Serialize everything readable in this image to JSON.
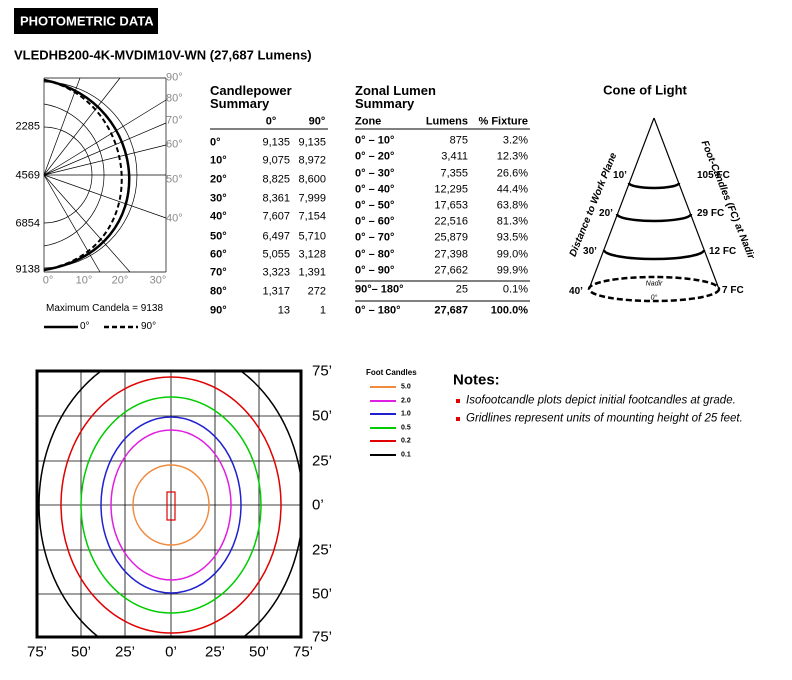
{
  "header": {
    "badge": "PHOTOMETRIC DATA",
    "model": "VLEDHB200-4K-MVDIM10V-WN (27,687 Lumens)"
  },
  "polar": {
    "angle_labels": [
      "90°",
      "80°",
      "70°",
      "60°",
      "50°",
      "40°"
    ],
    "radial_labels": [
      "2285",
      "4569",
      "6854",
      "9138"
    ],
    "bottom_labels": [
      "0°",
      "10°",
      "20°",
      "30°"
    ],
    "max_candela": "Maximum Candela = 9138",
    "legend": [
      "0°",
      "90°"
    ]
  },
  "candlepower": {
    "title": "Candlepower Summary",
    "columns": [
      "0°",
      "90°"
    ],
    "rows": [
      [
        "0°",
        "9,135",
        "9,135"
      ],
      [
        "10°",
        "9,075",
        "8,972"
      ],
      [
        "20°",
        "8,825",
        "8,600"
      ],
      [
        "30°",
        "8,361",
        "7,999"
      ],
      [
        "40°",
        "7,607",
        "7,154"
      ],
      [
        "50°",
        "6,497",
        "5,710"
      ],
      [
        "60°",
        "5,055",
        "3,128"
      ],
      [
        "70°",
        "3,323",
        "1,391"
      ],
      [
        "80°",
        "1,317",
        "272"
      ],
      [
        "90°",
        "13",
        "1"
      ]
    ]
  },
  "zonal": {
    "title": "Zonal Lumen Summary",
    "columns": [
      "Zone",
      "Lumens",
      "% Fixture"
    ],
    "rows": [
      [
        "0° – 10°",
        "875",
        "3.2%"
      ],
      [
        "0° – 20°",
        "3,411",
        "12.3%"
      ],
      [
        "0° – 30°",
        "7,355",
        "26.6%"
      ],
      [
        "0° – 40°",
        "12,295",
        "44.4%"
      ],
      [
        "0° – 50°",
        "17,653",
        "63.8%"
      ],
      [
        "0° – 60°",
        "22,516",
        "81.3%"
      ],
      [
        "0° – 70°",
        "25,879",
        "93.5%"
      ],
      [
        "0° – 80°",
        "27,398",
        "99.0%"
      ],
      [
        "0° – 90°",
        "27,662",
        "99.9%"
      ],
      [
        "90°– 180°",
        "25",
        "0.1%"
      ],
      [
        "0° – 180°",
        "27,687",
        "100.0%"
      ]
    ]
  },
  "cone": {
    "title": "Cone of Light",
    "left_label": "Distance to Work Plane",
    "right_label": "Foot-Candles (FC) at Nadir",
    "heights": [
      "10’",
      "20’",
      "30’",
      "40’"
    ],
    "fc": [
      "105 FC",
      "29 FC",
      "12 FC",
      "7 FC"
    ],
    "nadir": "Nadir",
    "nadir_angle": "0°"
  },
  "iso": {
    "right_labels": [
      "75’",
      "50’",
      "25’",
      "0’",
      "25’",
      "50’",
      "75’"
    ],
    "bottom_labels": [
      "75’",
      "50’",
      "25’",
      "0’",
      "25’",
      "50’",
      "75’"
    ],
    "legend_title": "Foot Candles",
    "legend": [
      "5.0",
      "2.0",
      "1.0",
      "0.5",
      "0.2",
      "0.1"
    ]
  },
  "notes": {
    "title": "Notes:",
    "items": [
      "Isofootcandle plots depict initial footcandles at grade.",
      "Gridlines represent units of mounting height of 25 feet."
    ]
  }
}
